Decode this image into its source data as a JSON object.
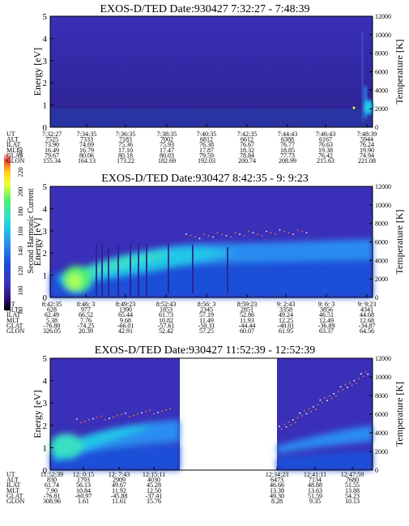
{
  "colors": {
    "bg_high": "#3a2fb8",
    "bg_low": "#2c228f",
    "deep_blue": "#1d4fd8",
    "mid_blue": "#2a8cf0",
    "cyan": "#22c6e8",
    "aqua": "#37e0c4",
    "green": "#4cf070",
    "yellow": "#f4ff30",
    "red": "#f03a2a",
    "white": "#ffffff",
    "black": "#000000"
  },
  "colorbar": {
    "label": "Second Harmonic Current",
    "ticks": [
      "80",
      "100",
      "120",
      "140",
      "160",
      "180",
      "200",
      "220",
      "240"
    ]
  },
  "chart_data": [
    {
      "type": "heatmap",
      "title": "EXOS-D/TED   Date:930427   7:32:27 - 7:48:39",
      "ylabel": "Energy [eV]",
      "y2label": "Temperature [K]",
      "ylim": [
        0,
        5
      ],
      "y2lim": [
        0,
        12000
      ],
      "yticks": [
        "0",
        "1",
        "2",
        "3",
        "4",
        "5"
      ],
      "y2ticks": [
        "0",
        "2000",
        "4000",
        "6000",
        "8000",
        "10000",
        "12000"
      ],
      "row_labels": [
        "UT",
        "ALT",
        "ILAT",
        "MLT",
        "GLAT",
        "GLON"
      ],
      "columns": [
        [
          "7:32:27",
          "7525",
          "73.90",
          "16.49",
          "79.67",
          "155.34"
        ],
        [
          "7:34:35",
          "7333",
          "74.69",
          "16.79",
          "80.06",
          "164.13"
        ],
        [
          "7:36:35",
          "7183",
          "75.36",
          "17.10",
          "80.18",
          "173.22"
        ],
        [
          "7:38:35",
          "7002",
          "75.93",
          "17.47",
          "80.03",
          "182.69"
        ],
        [
          "7:40:35",
          "6812",
          "76.38",
          "17.87",
          "79.59",
          "192.03"
        ],
        [
          "7:42:35",
          "6612",
          "76.67",
          "18.32",
          "78.84",
          "200.74"
        ],
        [
          "7:44:43",
          "6388",
          "76.77",
          "18.85",
          "77.73",
          "208.99"
        ],
        [
          "7:46:43",
          "6167",
          "76.63",
          "19.38",
          "76.42",
          "215.63"
        ],
        [
          "7:48:39",
          "5944",
          "76.24",
          "19.90",
          "74.94",
          "221.08"
        ]
      ]
    },
    {
      "type": "heatmap",
      "title": "EXOS-D/TED   Date:930427   8:42:35 - 9: 9:23",
      "ylabel": "Energy [eV]",
      "y2label": "Temperature [K]",
      "ylim": [
        0,
        5
      ],
      "y2lim": [
        0,
        12000
      ],
      "yticks": [
        "0",
        "1",
        "2",
        "3",
        "4",
        "5"
      ],
      "y2ticks": [
        "0",
        "2000",
        "4000",
        "6000",
        "8000",
        "10000",
        "12000"
      ],
      "row_labels": [
        "UT",
        "ALT",
        "ILAT",
        "MLT",
        "GLAT",
        "GLON"
      ],
      "columns": [
        [
          "8:42:35",
          "628",
          "62.49",
          "5.38",
          "-76.80",
          "326.05"
        ],
        [
          "8:46: 3",
          "977",
          "66.52",
          "7.76",
          "-74.25",
          "20.39"
        ],
        [
          "8:49:23",
          "1390",
          "65.44",
          "9.68",
          "-66.01",
          "42.91"
        ],
        [
          "8:52:43",
          "1853",
          "61.73",
          "10.82",
          "-57.61",
          "52.42"
        ],
        [
          "8:56: 3",
          "2345",
          "57.19",
          "11.49",
          "-50.31",
          "57.25"
        ],
        [
          "8:59:23",
          "2851",
          "52.86",
          "11.93",
          "-44.44",
          "60.07"
        ],
        [
          "9: 2:43",
          "3358",
          "49.24",
          "12.25",
          "-40.01",
          "61.95"
        ],
        [
          "9: 6: 3",
          "3856",
          "46.51",
          "12.49",
          "-36.89",
          "63.37"
        ],
        [
          "9: 9:23",
          "4341",
          "44.68",
          "12.68",
          "-34.87",
          "64.56"
        ]
      ]
    },
    {
      "type": "heatmap",
      "title": "EXOS-D/TED   Date:930427   11:52:39 - 12:52:39",
      "ylabel": "Energy [eV]",
      "y2label": "Temperature [K]",
      "ylim": [
        0,
        5
      ],
      "y2lim": [
        0,
        12000
      ],
      "yticks": [
        "0",
        "1",
        "2",
        "3",
        "4",
        "5"
      ],
      "y2ticks": [
        "0",
        "2000",
        "4000",
        "6000",
        "8000",
        "10000",
        "12000"
      ],
      "row_labels": [
        "UT",
        "ALT",
        "ILAT",
        "MLT",
        "GLAT",
        "GLON"
      ],
      "columns": [
        [
          "11:52:39",
          "830",
          "61.74",
          "7.90",
          "-76.81",
          "308.96"
        ],
        [
          "12: 0:15",
          "1793",
          "56.13",
          "10.84",
          "-60.97",
          "1.61"
        ],
        [
          "12: 7:43",
          "2909",
          "49.67",
          "11.92",
          "-45.88",
          "11.61"
        ],
        [
          "12:15:11",
          "4030",
          "45.28",
          "12.50",
          "-37.41",
          "15.76"
        ],
        [
          "12:34:23",
          "6473",
          "46.66",
          "13.38",
          "49.30",
          "8.28"
        ],
        [
          "12:41:11",
          "7134",
          "48.88",
          "13.63",
          "51.59",
          "9.35"
        ],
        [
          "12:47:59",
          "7680",
          "51.55",
          "13.88",
          "54.23",
          "10.13"
        ]
      ]
    }
  ]
}
